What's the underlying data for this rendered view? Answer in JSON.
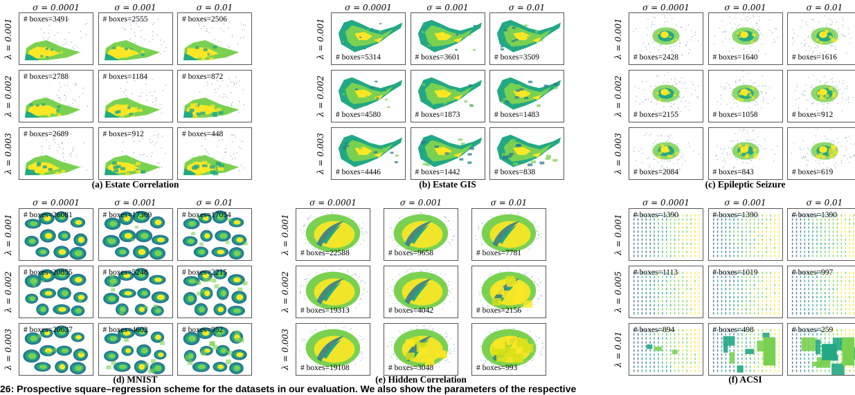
{
  "panels": [
    {
      "id": "estate-correlation",
      "caption": "(a) Estate Correlation",
      "style": "corr",
      "count_position": "top",
      "sigma_labels": [
        "σ = 0.0001",
        "σ = 0.001",
        "σ = 0.01"
      ],
      "lambda_labels": [
        "λ = 0.001",
        "λ = 0.002",
        "λ = 0.003"
      ],
      "counts": [
        [
          "# boxes=3491",
          "# boxes=2555",
          "# boxes=2506"
        ],
        [
          "# boxes=2788",
          "# boxes=1184",
          "# boxes=872"
        ],
        [
          "# boxes=2689",
          "# boxes=912",
          "# boxes=448"
        ]
      ]
    },
    {
      "id": "estate-gis",
      "caption": "(b) Estate GIS",
      "style": "gis",
      "count_position": "bottom",
      "sigma_labels": [
        "σ = 0.0001",
        "σ = 0.001",
        "σ = 0.01"
      ],
      "lambda_labels": [
        "λ = 0.001",
        "λ = 0.002",
        "λ = 0.003"
      ],
      "counts": [
        [
          "# boxes=5314",
          "# boxes=3601",
          "# boxes=3509"
        ],
        [
          "# boxes=4580",
          "# boxes=1873",
          "# boxes=1483"
        ],
        [
          "# boxes=4446",
          "# boxes=1442",
          "# boxes=838"
        ]
      ]
    },
    {
      "id": "epileptic-seizure",
      "caption": "(c) Epileptic Seizure",
      "style": "seizure",
      "count_position": "bottom",
      "sigma_labels": [
        "σ = 0.0001",
        "σ = 0.001",
        "σ = 0.01"
      ],
      "lambda_labels": [
        "λ = 0.001",
        "λ = 0.002",
        "λ = 0.003"
      ],
      "counts": [
        [
          "# boxes=2428",
          "# boxes=1640",
          "# boxes=1616"
        ],
        [
          "# boxes=2155",
          "# boxes=1058",
          "# boxes=912"
        ],
        [
          "# boxes=2084",
          "# boxes=843",
          "# boxes=619"
        ]
      ]
    },
    {
      "id": "mnist",
      "caption": "(d) MNIST",
      "style": "mnist",
      "count_position": "top",
      "sigma_labels": [
        "σ = 0.0001",
        "σ = 0.001",
        "σ = 0.01"
      ],
      "lambda_labels": [
        "λ = 0.001",
        "λ = 0.002",
        "λ = 0.003"
      ],
      "counts": [
        [
          "# boxes=26081",
          "# boxes=17369",
          "# boxes=17054"
        ],
        [
          "# boxes=20855",
          "# boxes=5248",
          "# boxes=2215"
        ],
        [
          "# boxes=20637",
          "# boxes=4602",
          "# boxes=952"
        ]
      ]
    },
    {
      "id": "hidden-correlation",
      "caption": "(e) Hidden Correlation",
      "style": "hidden",
      "count_position": "bottom",
      "sigma_labels": [
        "σ = 0.0001",
        "σ = 0.001",
        "σ = 0.01"
      ],
      "lambda_labels": [
        "λ = 0.001",
        "λ = 0.002",
        "λ = 0.003"
      ],
      "counts": [
        [
          "# boxes=22588",
          "# boxes=9658",
          "# boxes=7781"
        ],
        [
          "# boxes=19313",
          "# boxes=4042",
          "# boxes=2156"
        ],
        [
          "# boxes=19108",
          "# boxes=3048",
          "# boxes=993"
        ]
      ]
    },
    {
      "id": "acsi",
      "caption": "(f) ACSI",
      "style": "acsi",
      "count_position": "top",
      "sigma_labels": [
        "σ = 0.0001",
        "σ = 0.001",
        "σ = 0.01"
      ],
      "lambda_labels": [
        "λ = 0.001",
        "λ = 0.005",
        "λ = 0.01"
      ],
      "counts": [
        [
          "# boxes=1390",
          "# boxes=1390",
          "# boxes=1390"
        ],
        [
          "# boxes=1113",
          "# boxes=1019",
          "# boxes=997"
        ],
        [
          "# boxes=894",
          "# boxes=498",
          "# boxes=259"
        ]
      ]
    }
  ],
  "figure_caption": "26: Prospective square–regression scheme for the datasets in our evaluation. We also show the parameters of the respective",
  "colors": {
    "dark": "#2a788e",
    "mid": "#22a884",
    "light": "#7ad151",
    "bright": "#fde725",
    "scatter": "#31688e"
  }
}
